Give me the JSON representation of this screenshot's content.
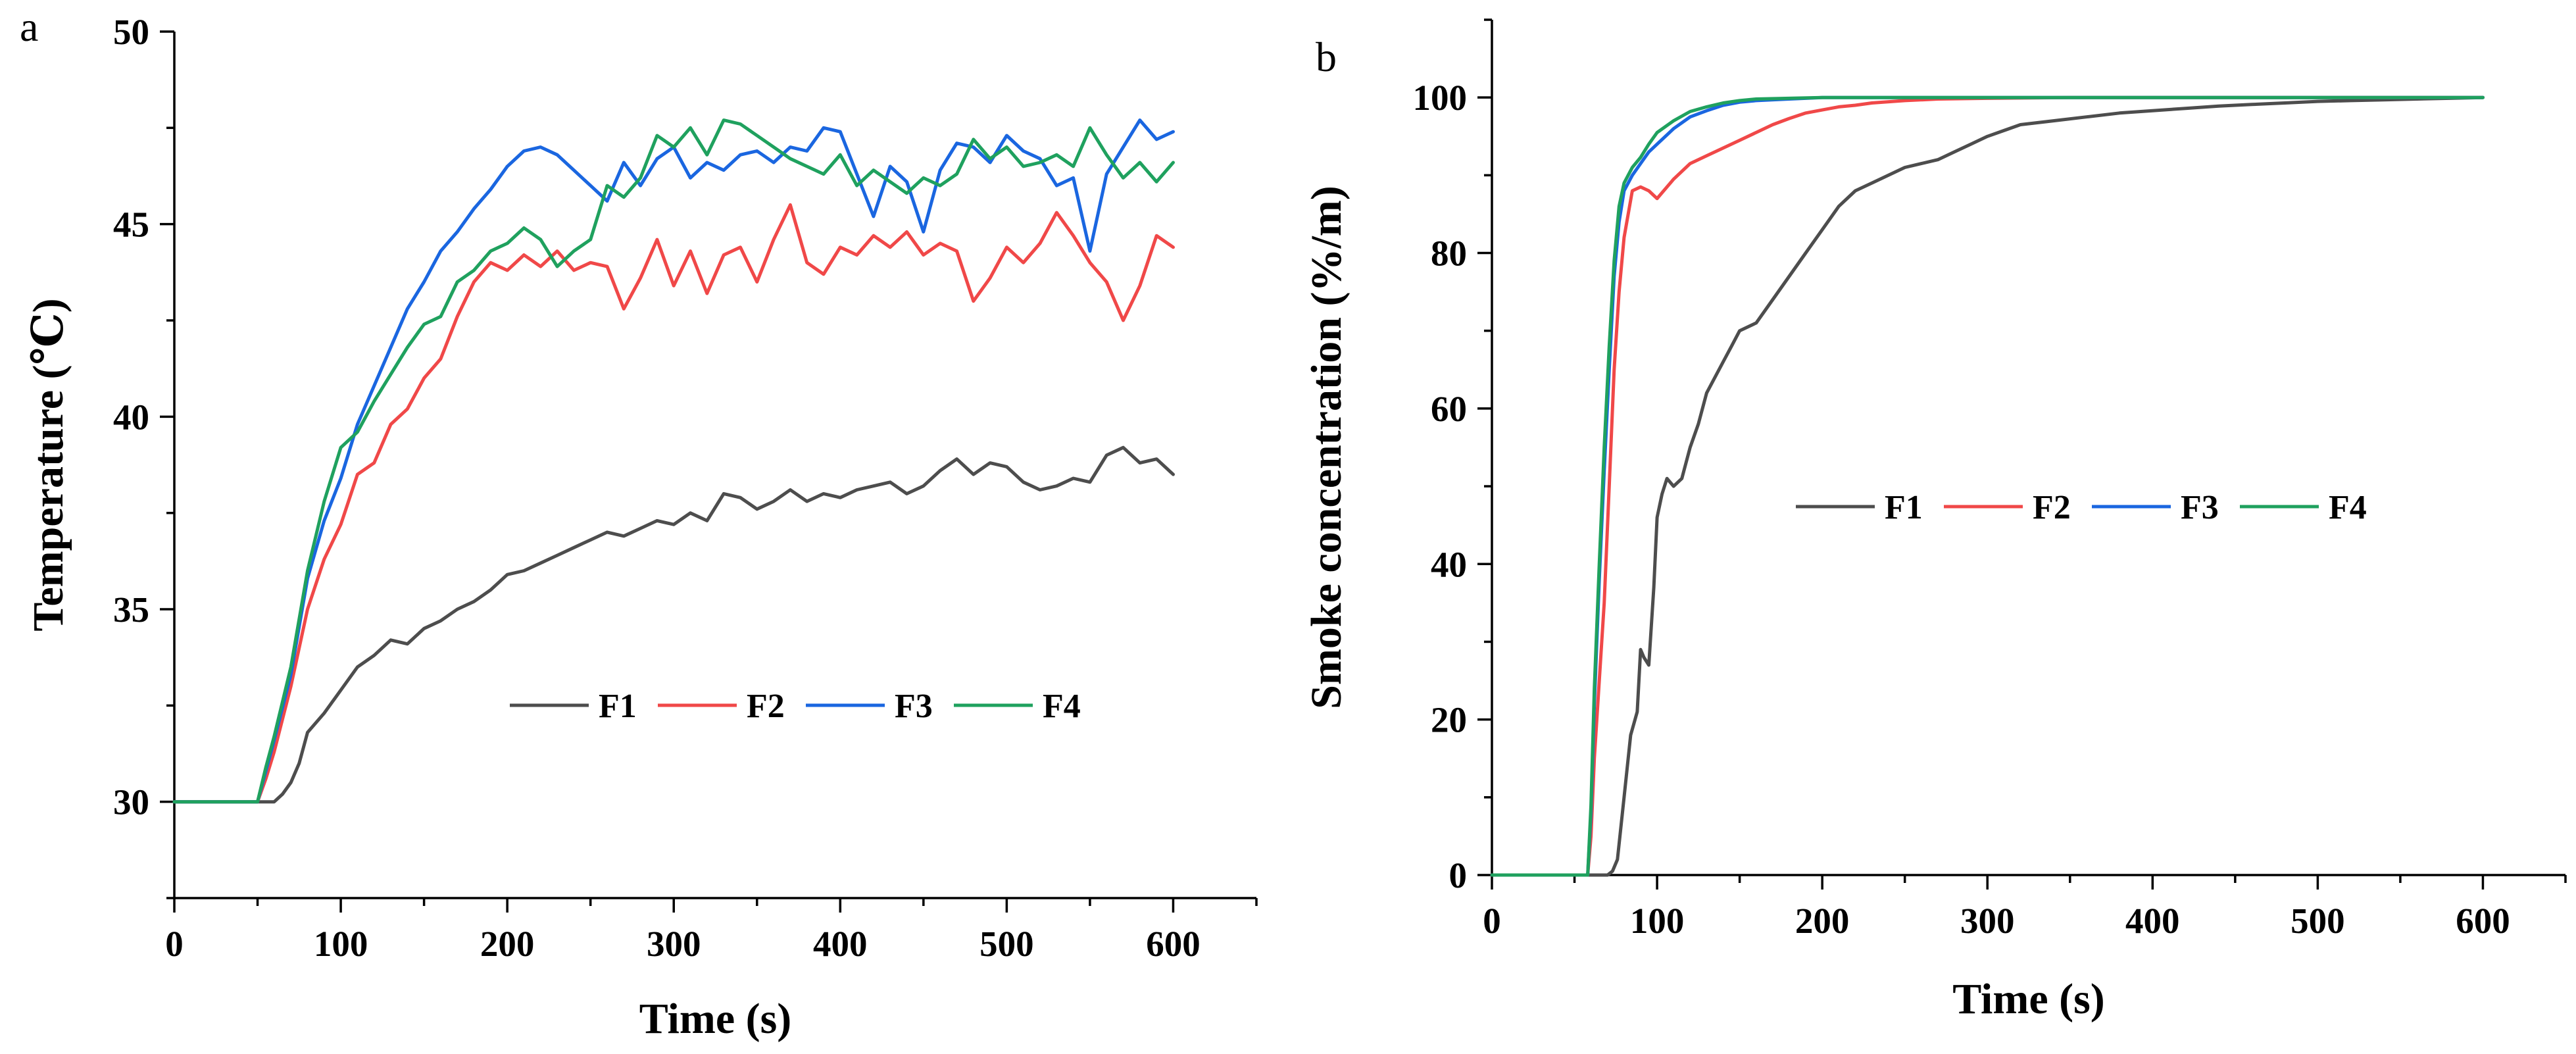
{
  "chart_data": [
    {
      "type": "line",
      "panel_label": "a",
      "title": "",
      "xlabel": "Time (s)",
      "ylabel": "Temperature (℃)",
      "xlim": [
        0,
        650
      ],
      "ylim": [
        27.5,
        50
      ],
      "xticks": [
        0,
        100,
        200,
        300,
        400,
        500,
        600
      ],
      "yticks": [
        30,
        35,
        40,
        45,
        50
      ],
      "legend_position": "center",
      "series": [
        {
          "name": "F1",
          "color": "#4d4d4d",
          "x": [
            0,
            60,
            65,
            70,
            75,
            80,
            90,
            100,
            110,
            120,
            130,
            140,
            150,
            160,
            170,
            180,
            190,
            200,
            210,
            220,
            230,
            240,
            250,
            260,
            270,
            280,
            290,
            300,
            310,
            320,
            330,
            340,
            350,
            360,
            370,
            380,
            390,
            400,
            410,
            420,
            430,
            440,
            450,
            460,
            470,
            480,
            490,
            500,
            510,
            520,
            530,
            540,
            550,
            560,
            570,
            580,
            590,
            600
          ],
          "y": [
            30,
            30,
            30.2,
            30.5,
            31,
            31.8,
            32.3,
            32.9,
            33.5,
            33.8,
            34.2,
            34.1,
            34.5,
            34.7,
            35.0,
            35.2,
            35.5,
            35.9,
            36.0,
            36.2,
            36.4,
            36.6,
            36.8,
            37.0,
            36.9,
            37.1,
            37.3,
            37.2,
            37.5,
            37.3,
            38.0,
            37.9,
            37.6,
            37.8,
            38.1,
            37.8,
            38.0,
            37.9,
            38.1,
            38.2,
            38.3,
            38.0,
            38.2,
            38.6,
            38.9,
            38.5,
            38.8,
            38.7,
            38.3,
            38.1,
            38.2,
            38.4,
            38.3,
            39.0,
            39.2,
            38.8,
            38.9,
            38.5
          ]
        },
        {
          "name": "F2",
          "color": "#f04848",
          "x": [
            0,
            50,
            55,
            60,
            70,
            80,
            90,
            100,
            110,
            120,
            130,
            140,
            150,
            160,
            170,
            180,
            190,
            200,
            210,
            220,
            230,
            240,
            250,
            260,
            270,
            280,
            290,
            300,
            310,
            320,
            330,
            340,
            350,
            360,
            370,
            380,
            390,
            400,
            410,
            420,
            430,
            440,
            450,
            460,
            470,
            480,
            490,
            500,
            510,
            520,
            530,
            540,
            550,
            560,
            570,
            580,
            590,
            600
          ],
          "y": [
            30,
            30,
            30.6,
            31.3,
            33.0,
            35.0,
            36.3,
            37.2,
            38.5,
            38.8,
            39.8,
            40.2,
            41.0,
            41.5,
            42.6,
            43.5,
            44.0,
            43.8,
            44.2,
            43.9,
            44.3,
            43.8,
            44.0,
            43.9,
            42.8,
            43.6,
            44.6,
            43.4,
            44.3,
            43.2,
            44.2,
            44.4,
            43.5,
            44.6,
            45.5,
            44.0,
            43.7,
            44.4,
            44.2,
            44.7,
            44.4,
            44.8,
            44.2,
            44.5,
            44.3,
            43.0,
            43.6,
            44.4,
            44.0,
            44.5,
            45.3,
            44.7,
            44.0,
            43.5,
            42.5,
            43.4,
            44.7,
            44.4
          ]
        },
        {
          "name": "F3",
          "color": "#1a66e0",
          "x": [
            0,
            50,
            55,
            60,
            70,
            80,
            90,
            100,
            110,
            120,
            130,
            140,
            150,
            160,
            170,
            180,
            190,
            200,
            210,
            220,
            230,
            240,
            250,
            260,
            270,
            280,
            290,
            300,
            310,
            320,
            330,
            340,
            350,
            360,
            370,
            380,
            390,
            400,
            410,
            420,
            430,
            440,
            450,
            460,
            470,
            480,
            490,
            500,
            510,
            520,
            530,
            540,
            550,
            560,
            570,
            580,
            590,
            600
          ],
          "y": [
            30,
            30,
            30.8,
            31.6,
            33.3,
            35.8,
            37.3,
            38.4,
            39.8,
            40.8,
            41.8,
            42.8,
            43.5,
            44.3,
            44.8,
            45.4,
            45.9,
            46.5,
            46.9,
            47.0,
            46.8,
            46.4,
            46.0,
            45.6,
            46.6,
            46.0,
            46.7,
            47.0,
            46.2,
            46.6,
            46.4,
            46.8,
            46.9,
            46.6,
            47.0,
            46.9,
            47.5,
            47.4,
            46.3,
            45.2,
            46.5,
            46.1,
            44.8,
            46.4,
            47.1,
            47.0,
            46.6,
            47.3,
            46.9,
            46.7,
            46.0,
            46.2,
            44.3,
            46.3,
            47.0,
            47.7,
            47.2,
            47.4
          ]
        },
        {
          "name": "F4",
          "color": "#1fa15e",
          "x": [
            0,
            50,
            55,
            60,
            70,
            80,
            90,
            100,
            110,
            120,
            130,
            140,
            150,
            160,
            170,
            180,
            190,
            200,
            210,
            220,
            230,
            240,
            250,
            260,
            270,
            280,
            290,
            300,
            310,
            320,
            330,
            340,
            350,
            360,
            370,
            380,
            390,
            400,
            410,
            420,
            430,
            440,
            450,
            460,
            470,
            480,
            490,
            500,
            510,
            520,
            530,
            540,
            550,
            560,
            570,
            580,
            590,
            600
          ],
          "y": [
            30,
            30,
            30.9,
            31.7,
            33.5,
            36.0,
            37.8,
            39.2,
            39.6,
            40.4,
            41.1,
            41.8,
            42.4,
            42.6,
            43.5,
            43.8,
            44.3,
            44.5,
            44.9,
            44.6,
            43.9,
            44.3,
            44.6,
            46.0,
            45.7,
            46.2,
            47.3,
            47.0,
            47.5,
            46.8,
            47.7,
            47.6,
            47.3,
            47.0,
            46.7,
            46.5,
            46.3,
            46.8,
            46.0,
            46.4,
            46.1,
            45.8,
            46.2,
            46.0,
            46.3,
            47.2,
            46.7,
            47.0,
            46.5,
            46.6,
            46.8,
            46.5,
            47.5,
            46.8,
            46.2,
            46.6,
            46.1,
            46.6
          ]
        }
      ]
    },
    {
      "type": "line",
      "panel_label": "b",
      "title": "",
      "xlabel": "Time (s)",
      "ylabel": "Smoke concentration (%/m)",
      "xlim": [
        0,
        650
      ],
      "ylim": [
        0,
        110
      ],
      "xticks": [
        0,
        100,
        200,
        300,
        400,
        500,
        600
      ],
      "yticks": [
        0,
        20,
        40,
        60,
        80,
        100
      ],
      "legend_position": "center",
      "series": [
        {
          "name": "F1",
          "color": "#4d4d4d",
          "x": [
            0,
            70,
            73,
            76,
            80,
            84,
            88,
            90,
            92,
            95,
            98,
            100,
            103,
            106,
            110,
            115,
            120,
            125,
            130,
            135,
            140,
            145,
            150,
            160,
            170,
            180,
            190,
            200,
            210,
            220,
            230,
            240,
            250,
            260,
            270,
            280,
            290,
            300,
            320,
            340,
            360,
            380,
            400,
            420,
            440,
            460,
            480,
            500,
            520,
            540,
            560,
            580,
            600
          ],
          "y": [
            0,
            0,
            0.5,
            2,
            10,
            18,
            21,
            29,
            28,
            27,
            37,
            46,
            49,
            51,
            50,
            51,
            55,
            58,
            62,
            64,
            66,
            68,
            70,
            71,
            74,
            77,
            80,
            83,
            86,
            88,
            89,
            90,
            91,
            91.5,
            92,
            93,
            94,
            95,
            96.5,
            97,
            97.5,
            98,
            98.3,
            98.6,
            98.9,
            99.1,
            99.3,
            99.5,
            99.6,
            99.7,
            99.8,
            99.9,
            100
          ]
        },
        {
          "name": "F2",
          "color": "#f04848",
          "x": [
            0,
            58,
            60,
            62,
            65,
            68,
            71,
            74,
            77,
            80,
            85,
            90,
            95,
            100,
            110,
            120,
            130,
            140,
            150,
            160,
            170,
            180,
            190,
            200,
            210,
            220,
            230,
            250,
            270,
            300,
            350,
            400,
            450,
            500,
            550,
            600
          ],
          "y": [
            0,
            0,
            5,
            15,
            25,
            35,
            50,
            65,
            75,
            82,
            88,
            88.5,
            88,
            87,
            89.5,
            91.5,
            92.5,
            93.5,
            94.5,
            95.5,
            96.5,
            97.3,
            98,
            98.4,
            98.8,
            99,
            99.3,
            99.6,
            99.8,
            99.9,
            100,
            100,
            100,
            100,
            100,
            100
          ]
        },
        {
          "name": "F3",
          "color": "#1a66e0",
          "x": [
            0,
            58,
            60,
            62,
            65,
            68,
            71,
            74,
            77,
            80,
            85,
            90,
            95,
            100,
            110,
            120,
            130,
            140,
            150,
            160,
            180,
            200,
            250,
            300,
            400,
            500,
            600
          ],
          "y": [
            0,
            0,
            8,
            22,
            38,
            52,
            65,
            77,
            84,
            88,
            90,
            91.5,
            93,
            94,
            96,
            97.5,
            98.3,
            99,
            99.4,
            99.6,
            99.8,
            100,
            100,
            100,
            100,
            100,
            100
          ]
        },
        {
          "name": "F4",
          "color": "#1fa15e",
          "x": [
            0,
            58,
            60,
            62,
            65,
            68,
            71,
            74,
            77,
            80,
            85,
            90,
            95,
            100,
            110,
            120,
            130,
            140,
            150,
            160,
            180,
            200,
            250,
            300,
            400,
            500,
            600
          ],
          "y": [
            0,
            0,
            9,
            24,
            40,
            55,
            68,
            79,
            86,
            89,
            91,
            92.3,
            94,
            95.5,
            97,
            98.2,
            98.8,
            99.3,
            99.6,
            99.8,
            99.9,
            100,
            100,
            100,
            100,
            100,
            100
          ]
        }
      ]
    }
  ]
}
